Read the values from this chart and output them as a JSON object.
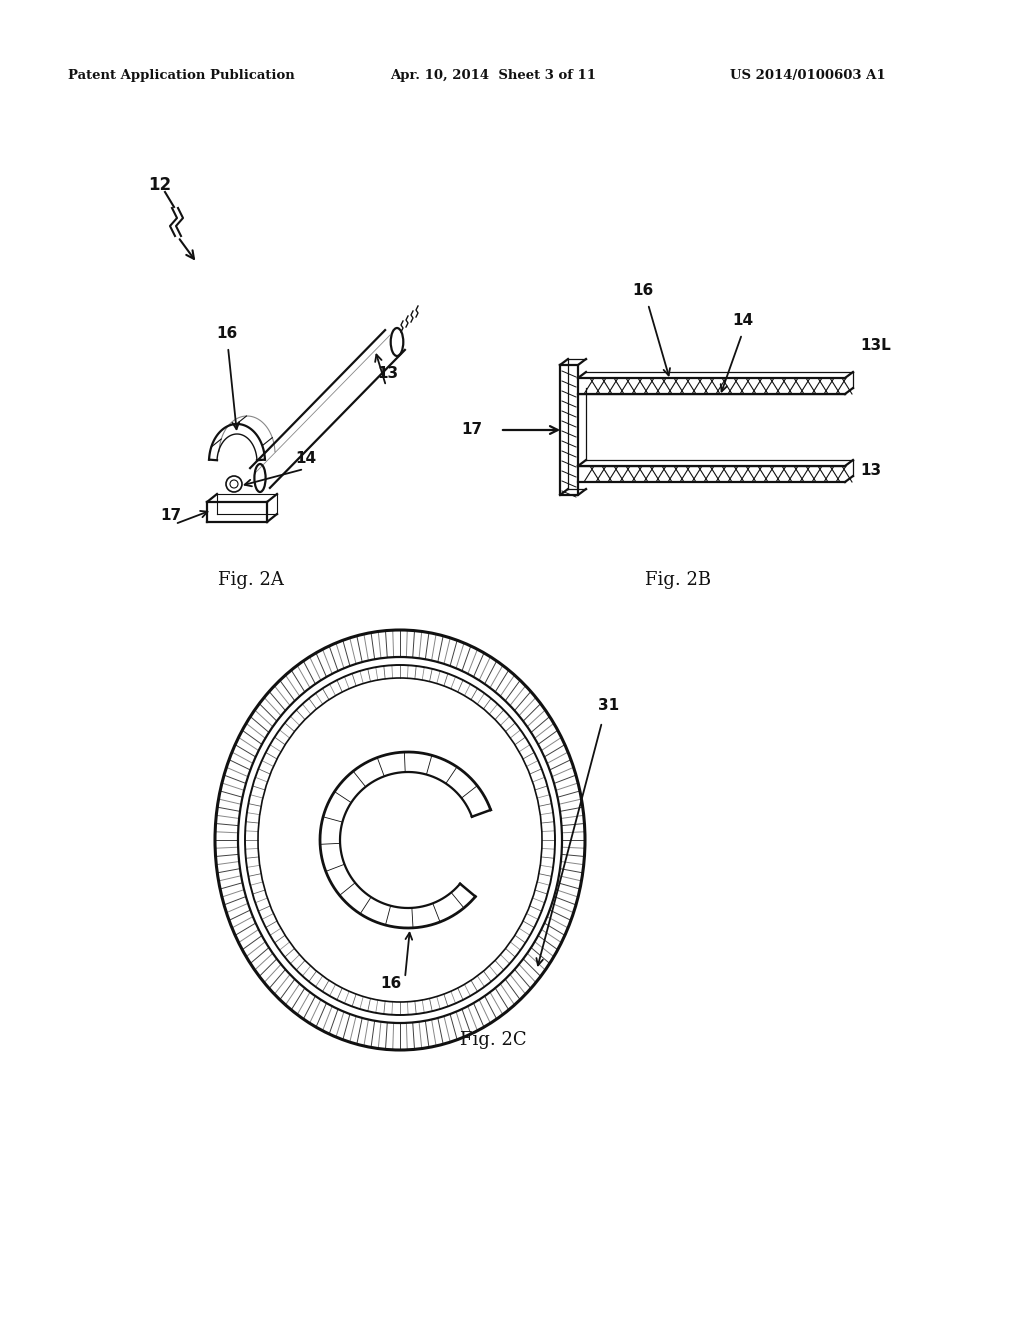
{
  "bg_color": "#ffffff",
  "header_left": "Patent Application Publication",
  "header_center": "Apr. 10, 2014  Sheet 3 of 11",
  "header_right": "US 2014/0100603 A1",
  "fig2a_label": "Fig. 2A",
  "fig2b_label": "Fig. 2B",
  "fig2c_label": "Fig. 2C",
  "line_color": "#111111",
  "lw": 1.6
}
